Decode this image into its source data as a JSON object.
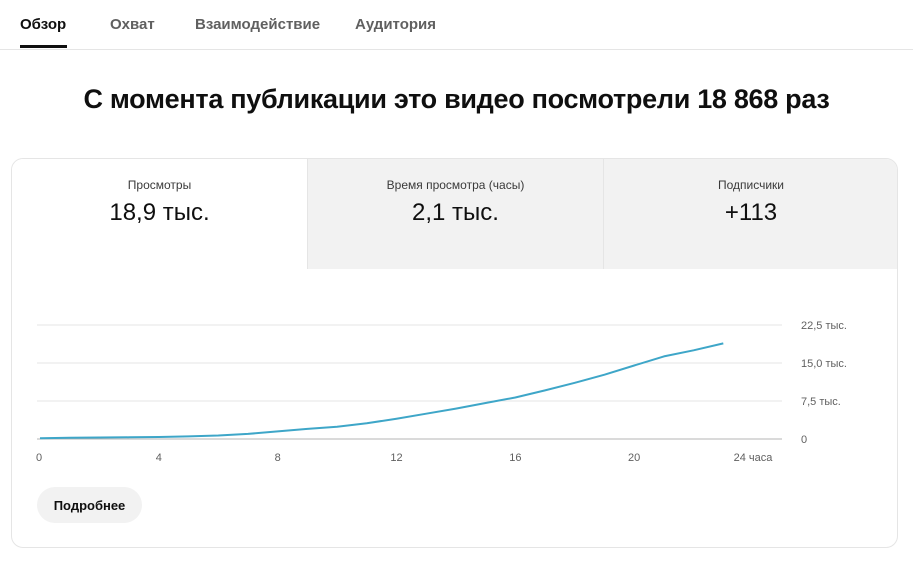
{
  "tabs": [
    {
      "label": "Обзор",
      "active": true
    },
    {
      "label": "Охват",
      "active": false
    },
    {
      "label": "Взаимодействие",
      "active": false
    },
    {
      "label": "Аудитория",
      "active": false
    }
  ],
  "headline": "С момента публикации это видео посмотрели 18 868 раз",
  "metrics": [
    {
      "label": "Просмотры",
      "value": "18,9 тыс.",
      "selected": true
    },
    {
      "label": "Время просмотра (часы)",
      "value": "2,1 тыс.",
      "selected": false
    },
    {
      "label": "Подписчики",
      "value": "+113",
      "selected": false
    }
  ],
  "more_button": "Подробнее",
  "colors": {
    "accent_line": "#3ea6c8",
    "active_tab": "#0f0f0f"
  },
  "chart_data": {
    "type": "line",
    "title": "",
    "xlabel": "",
    "ylabel": "",
    "xlim": [
      0,
      24
    ],
    "ylim": [
      0,
      22500
    ],
    "x_ticks": [
      {
        "value": 0,
        "label": "0"
      },
      {
        "value": 4,
        "label": "4"
      },
      {
        "value": 8,
        "label": "8"
      },
      {
        "value": 12,
        "label": "12"
      },
      {
        "value": 16,
        "label": "16"
      },
      {
        "value": 20,
        "label": "20"
      },
      {
        "value": 24,
        "label": "24 часа"
      }
    ],
    "y_ticks": [
      {
        "value": 0,
        "label": "0"
      },
      {
        "value": 7500,
        "label": "7,5 тыс."
      },
      {
        "value": 15000,
        "label": "15,0 тыс."
      },
      {
        "value": 22500,
        "label": "22,5 тыс."
      }
    ],
    "grid": true,
    "series": [
      {
        "x": [
          0,
          1,
          2,
          3,
          4,
          5,
          6,
          7,
          8,
          9,
          10,
          11,
          12,
          13,
          14,
          15,
          16,
          17,
          18,
          19,
          20,
          21,
          22,
          23
        ],
        "values": [
          150,
          250,
          300,
          330,
          400,
          520,
          700,
          1000,
          1500,
          2000,
          2400,
          3100,
          4000,
          5000,
          6000,
          7100,
          8200,
          9600,
          11100,
          12700,
          14500,
          16300,
          17500,
          18868
        ]
      }
    ]
  }
}
